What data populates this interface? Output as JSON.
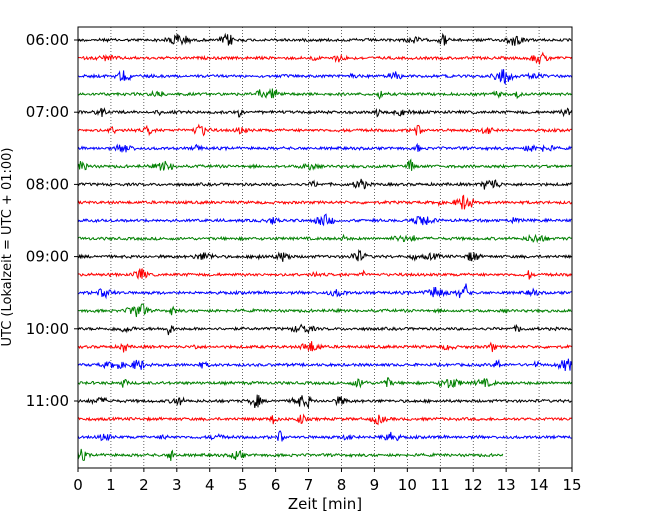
{
  "chart_data": {
    "type": "line",
    "title": "",
    "xlabel": "Zeit  [min]",
    "ylabel": "UTC (Lokalzeit = UTC + 01:00)",
    "xlim": [
      0,
      15
    ],
    "x_ticks": [
      "0",
      "1",
      "2",
      "3",
      "4",
      "5",
      "6",
      "7",
      "8",
      "9",
      "10",
      "11",
      "12",
      "13",
      "14",
      "15"
    ],
    "y_ticks": [
      "06:00",
      "07:00",
      "08:00",
      "09:00",
      "10:00",
      "11:00"
    ],
    "grid": "vertical dotted",
    "trace_minutes_per_row": 15,
    "trace_colors": [
      "#000000",
      "#ff0000",
      "#0000ff",
      "#008000"
    ],
    "series": [
      {
        "start": "06:00",
        "end_min": 15
      },
      {
        "start": "06:15",
        "end_min": 15
      },
      {
        "start": "06:30",
        "end_min": 15
      },
      {
        "start": "06:45",
        "end_min": 15
      },
      {
        "start": "07:00",
        "end_min": 15
      },
      {
        "start": "07:15",
        "end_min": 15
      },
      {
        "start": "07:30",
        "end_min": 15
      },
      {
        "start": "07:45",
        "end_min": 15
      },
      {
        "start": "08:00",
        "end_min": 15
      },
      {
        "start": "08:15",
        "end_min": 15
      },
      {
        "start": "08:30",
        "end_min": 15
      },
      {
        "start": "08:45",
        "end_min": 15
      },
      {
        "start": "09:00",
        "end_min": 15
      },
      {
        "start": "09:15",
        "end_min": 15
      },
      {
        "start": "09:30",
        "end_min": 15
      },
      {
        "start": "09:45",
        "end_min": 15
      },
      {
        "start": "10:00",
        "end_min": 15
      },
      {
        "start": "10:15",
        "end_min": 15
      },
      {
        "start": "10:30",
        "end_min": 15
      },
      {
        "start": "10:45",
        "end_min": 15
      },
      {
        "start": "11:00",
        "end_min": 15
      },
      {
        "start": "11:15",
        "end_min": 15
      },
      {
        "start": "11:30",
        "end_min": 15
      },
      {
        "start": "11:45",
        "end_min": 12.9
      }
    ]
  }
}
